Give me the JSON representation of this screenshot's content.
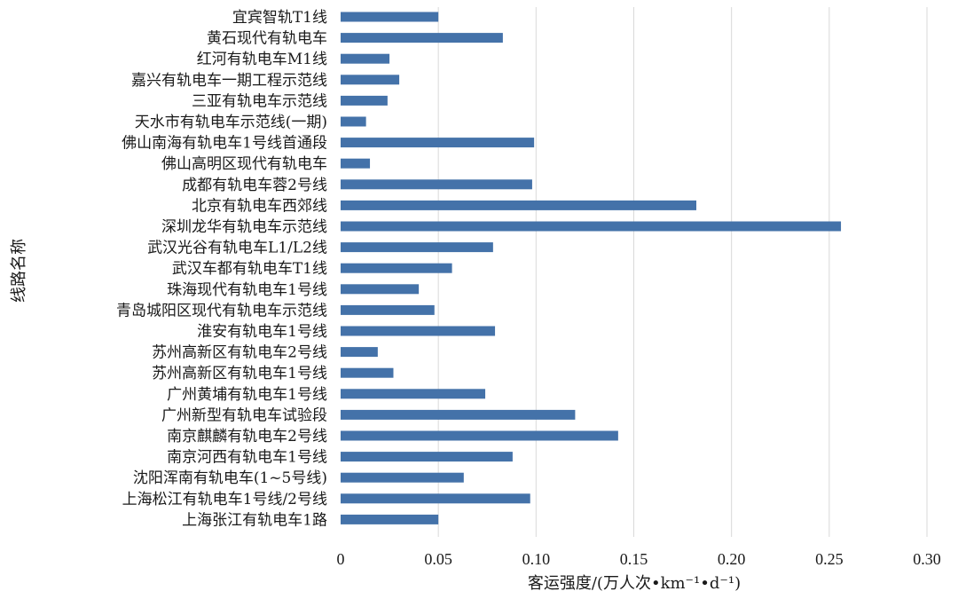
{
  "chart_data": {
    "type": "bar",
    "orientation": "horizontal",
    "title": "",
    "xlabel": "客运强度/(万人次•km⁻¹•d⁻¹)",
    "ylabel": "线路名称",
    "xlim": [
      0,
      0.3
    ],
    "xticks": [
      "0",
      "0.05",
      "0.10",
      "0.15",
      "0.20",
      "0.25",
      "0.30"
    ],
    "grid": "vertical",
    "color": "#4472a9",
    "categories": [
      "宜宾智轨T1线",
      "黄石现代有轨电车",
      "红河有轨电车M1线",
      "嘉兴有轨电车一期工程示范线",
      "三亚有轨电车示范线",
      "天水市有轨电车示范线(一期)",
      "佛山南海有轨电车1号线首通段",
      "佛山高明区现代有轨电车",
      "成都有轨电车蓉2号线",
      "北京有轨电车西郊线",
      "深圳龙华有轨电车示范线",
      "武汉光谷有轨电车L1/L2线",
      "武汉车都有轨电车T1线",
      "珠海现代有轨电车1号线",
      "青岛城阳区现代有轨电车示范线",
      "淮安有轨电车1号线",
      "苏州高新区有轨电车2号线",
      "苏州高新区有轨电车1号线",
      "广州黄埔有轨电车1号线",
      "广州新型有轨电车试验段",
      "南京麒麟有轨电车2号线",
      "南京河西有轨电车1号线",
      "沈阳浑南有轨电车(1~5号线)",
      "上海松江有轨电车1号线/2号线",
      "上海张江有轨电车1路"
    ],
    "values": [
      0.05,
      0.083,
      0.025,
      0.03,
      0.024,
      0.013,
      0.099,
      0.015,
      0.098,
      0.182,
      0.256,
      0.078,
      0.057,
      0.04,
      0.048,
      0.079,
      0.019,
      0.027,
      0.074,
      0.12,
      0.142,
      0.088,
      0.063,
      0.097,
      0.05
    ]
  }
}
